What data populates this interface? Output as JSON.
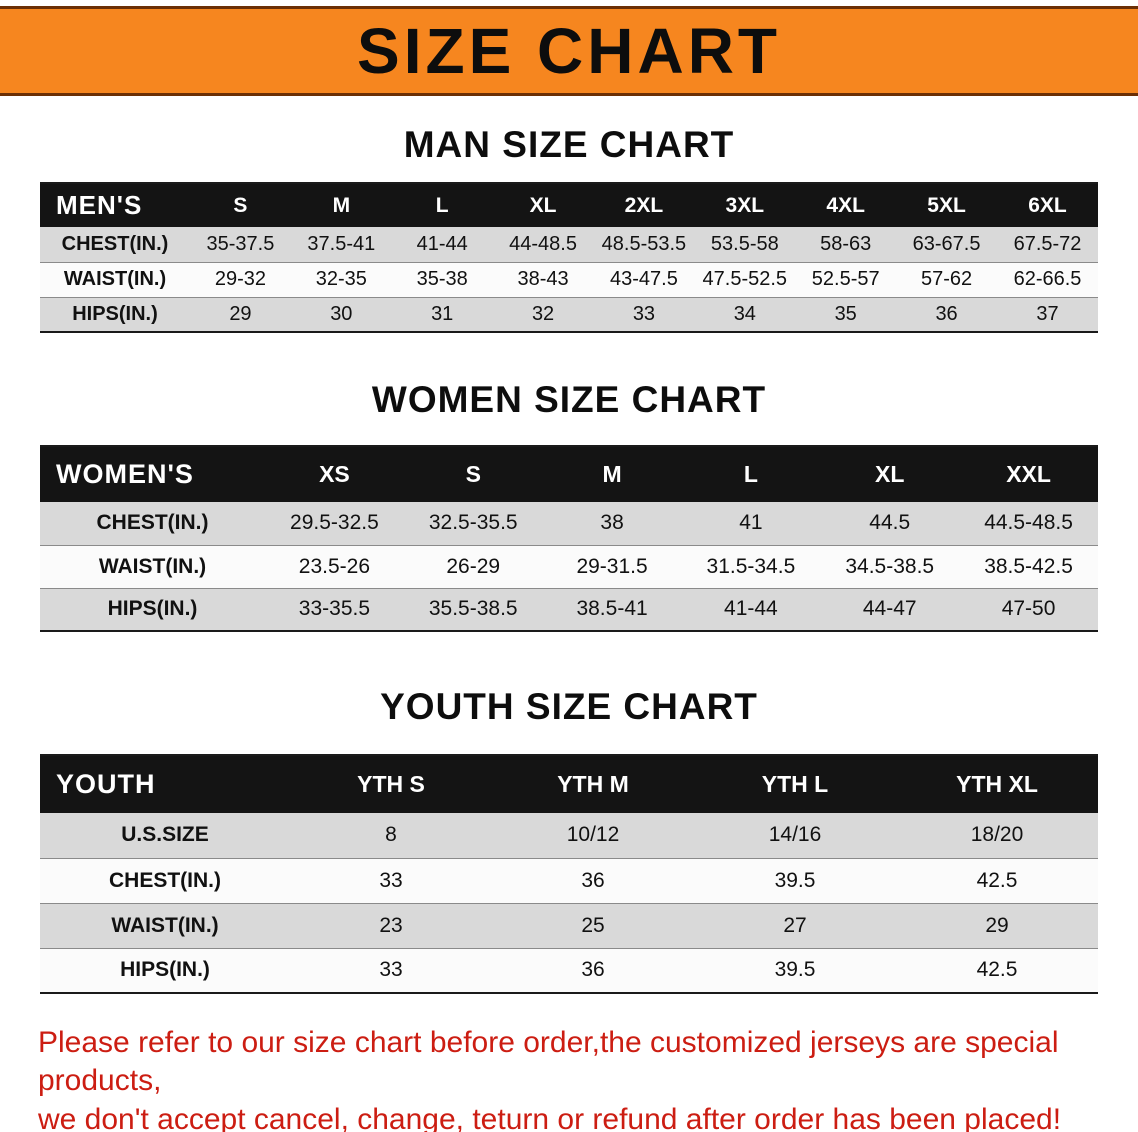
{
  "banner": {
    "title": "SIZE CHART"
  },
  "sections": [
    {
      "heading": "MAN SIZE CHART",
      "table": {
        "label": "MEN'S",
        "columns": [
          "S",
          "M",
          "L",
          "XL",
          "2XL",
          "3XL",
          "4XL",
          "5XL",
          "6XL"
        ],
        "rows": [
          {
            "label": "CHEST(IN.)",
            "values": [
              "35-37.5",
              "37.5-41",
              "41-44",
              "44-48.5",
              "48.5-53.5",
              "53.5-58",
              "58-63",
              "63-67.5",
              "67.5-72"
            ]
          },
          {
            "label": "WAIST(IN.)",
            "values": [
              "29-32",
              "32-35",
              "35-38",
              "38-43",
              "43-47.5",
              "47.5-52.5",
              "52.5-57",
              "57-62",
              "62-66.5"
            ]
          },
          {
            "label": "HIPS(IN.)",
            "values": [
              "29",
              "30",
              "31",
              "32",
              "33",
              "34",
              "35",
              "36",
              "37"
            ]
          }
        ]
      }
    },
    {
      "heading": "WOMEN SIZE CHART",
      "table": {
        "label": "WOMEN'S",
        "columns": [
          "XS",
          "S",
          "M",
          "L",
          "XL",
          "XXL"
        ],
        "rows": [
          {
            "label": "CHEST(IN.)",
            "values": [
              "29.5-32.5",
              "32.5-35.5",
              "38",
              "41",
              "44.5",
              "44.5-48.5"
            ]
          },
          {
            "label": "WAIST(IN.)",
            "values": [
              "23.5-26",
              "26-29",
              "29-31.5",
              "31.5-34.5",
              "34.5-38.5",
              "38.5-42.5"
            ]
          },
          {
            "label": "HIPS(IN.)",
            "values": [
              "33-35.5",
              "35.5-38.5",
              "38.5-41",
              "41-44",
              "44-47",
              "47-50"
            ]
          }
        ]
      }
    },
    {
      "heading": "YOUTH SIZE CHART",
      "table": {
        "label": "YOUTH",
        "columns": [
          "YTH S",
          "YTH M",
          "YTH L",
          "YTH XL"
        ],
        "rows": [
          {
            "label": "U.S.SIZE",
            "values": [
              "8",
              "10/12",
              "14/16",
              "18/20"
            ]
          },
          {
            "label": "CHEST(IN.)",
            "values": [
              "33",
              "36",
              "39.5",
              "42.5"
            ]
          },
          {
            "label": "WAIST(IN.)",
            "values": [
              "23",
              "25",
              "27",
              "29"
            ]
          },
          {
            "label": "HIPS(IN.)",
            "values": [
              "33",
              "36",
              "39.5",
              "42.5"
            ]
          }
        ]
      }
    }
  ],
  "disclaimer": {
    "line1": "Please refer to our size chart before order,the customized jerseys are special products,",
    "line2": "we don't accept cancel, change, teturn or refund after order has been placed!"
  },
  "colors": {
    "banner_bg": "#f6861f",
    "table_header_bg": "#141414",
    "stripe_bg": "#d9d9d9",
    "disclaimer_color": "#cc1d12"
  }
}
